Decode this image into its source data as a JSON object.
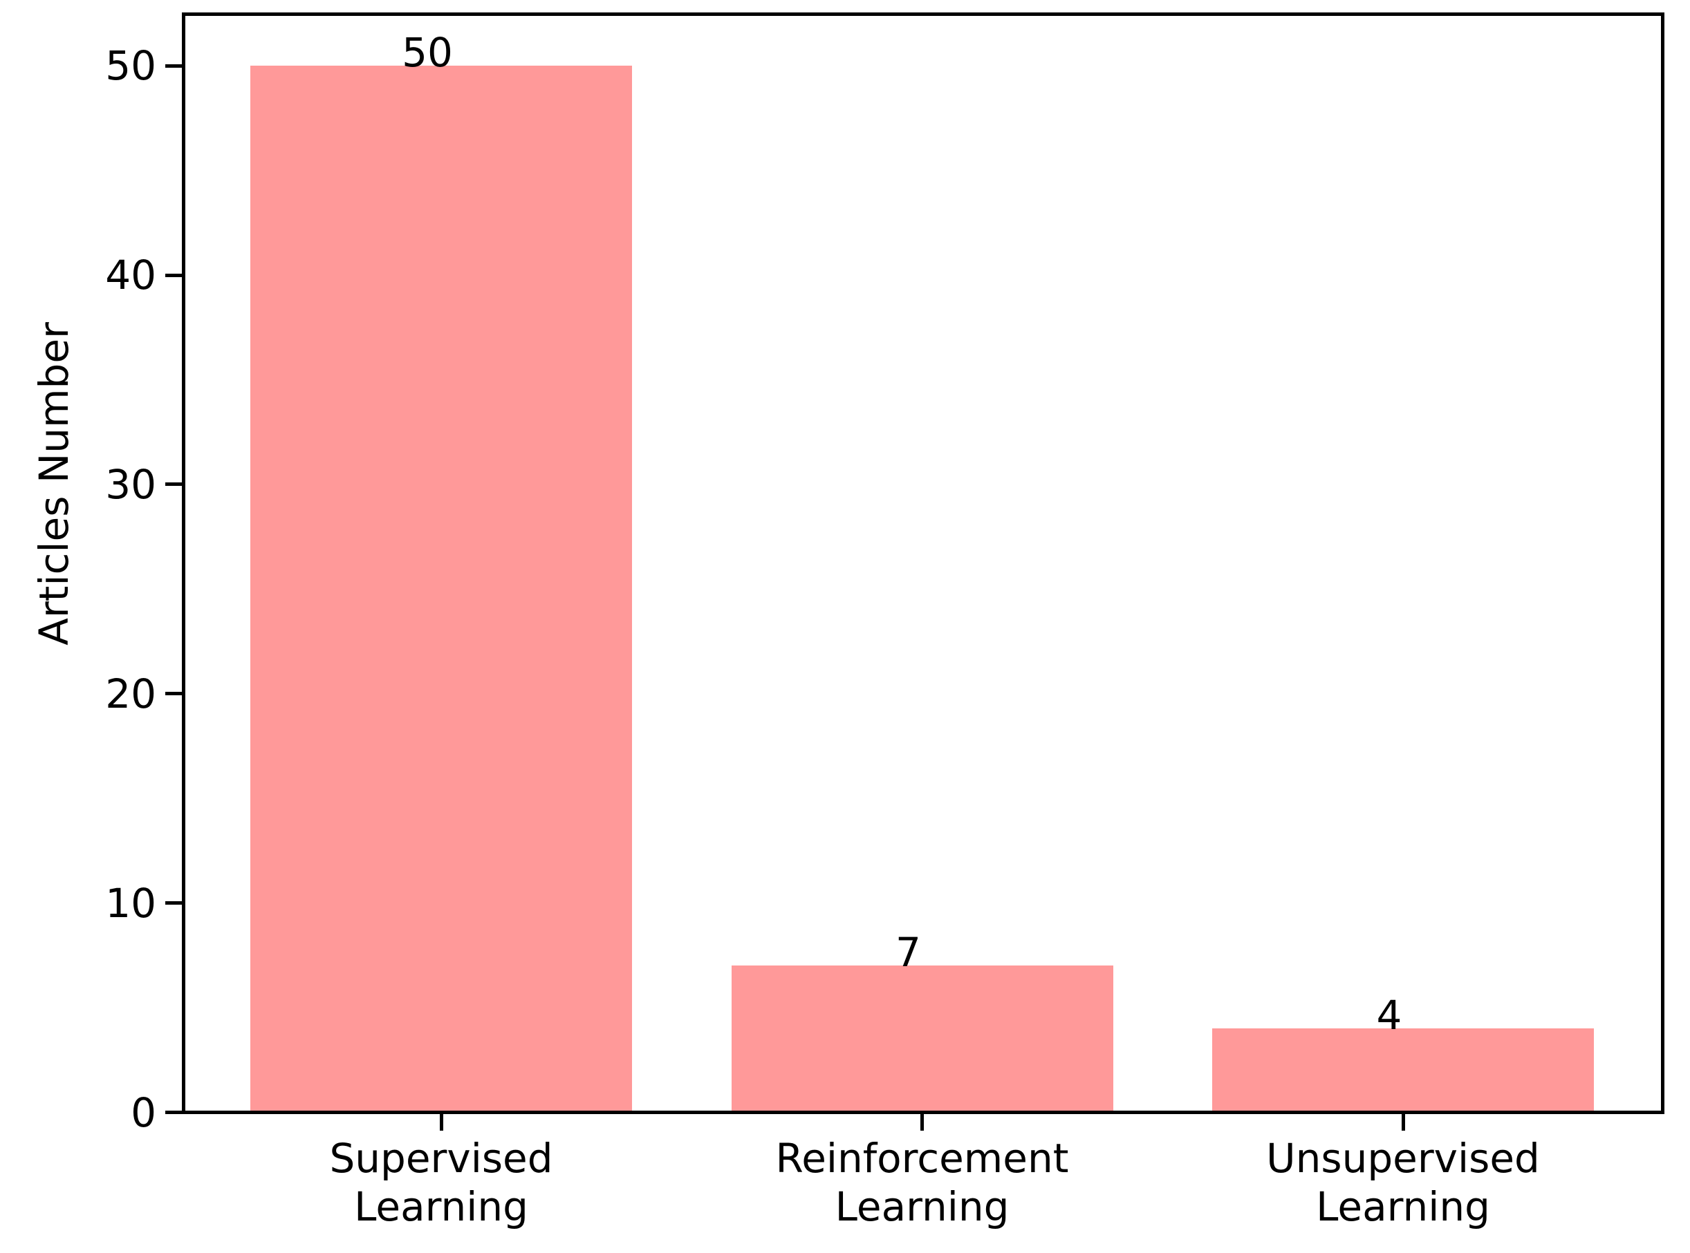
{
  "chart_data": {
    "type": "bar",
    "title": "",
    "categories": [
      "Supervised\nLearning",
      "Reinforcement\nLearning",
      "Unsupervised\nLearning"
    ],
    "values": [
      50,
      7,
      4
    ],
    "bar_value_labels": [
      "50",
      "7",
      "4"
    ],
    "xlabel": "",
    "ylabel": "Articles Number",
    "yticks": [
      0,
      10,
      20,
      30,
      40,
      50
    ],
    "ylim": [
      0,
      52.3
    ],
    "bar_color": "#FF9999",
    "axis_color": "#000000",
    "text_color": "#000000",
    "background_color": "#FFFFFF",
    "grid": false,
    "legend": "none"
  }
}
